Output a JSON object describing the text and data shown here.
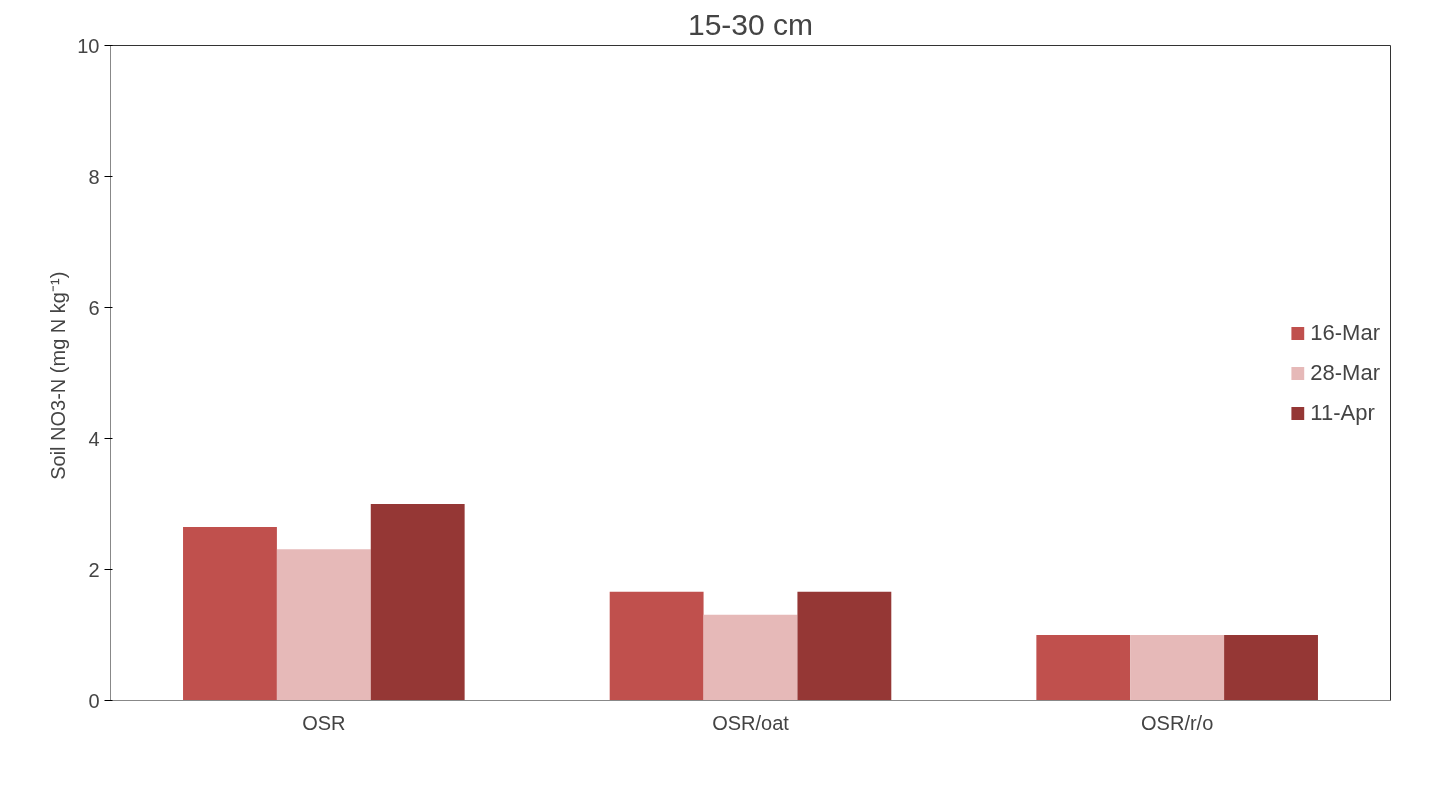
{
  "chart_data": {
    "type": "bar",
    "title": "15-30 cm",
    "ylabel": "Soil NO3-N  (mg N kg⁻¹)",
    "categories": [
      "OSR",
      "OSR/oat",
      "OSR/r/o"
    ],
    "series": [
      {
        "name": "16-Mar",
        "color": "#c0504d",
        "values": [
          2.65,
          1.66,
          1.0
        ]
      },
      {
        "name": "28-Mar",
        "color": "#e6b9b8",
        "values": [
          2.31,
          1.31,
          1.0
        ]
      },
      {
        "name": "11-Apr",
        "color": "#953735",
        "values": [
          3.0,
          1.66,
          1.0
        ]
      }
    ],
    "ylim": [
      0,
      10
    ],
    "yticks": [
      0,
      2,
      4,
      6,
      8,
      10
    ],
    "grid": false,
    "legend": "right"
  }
}
